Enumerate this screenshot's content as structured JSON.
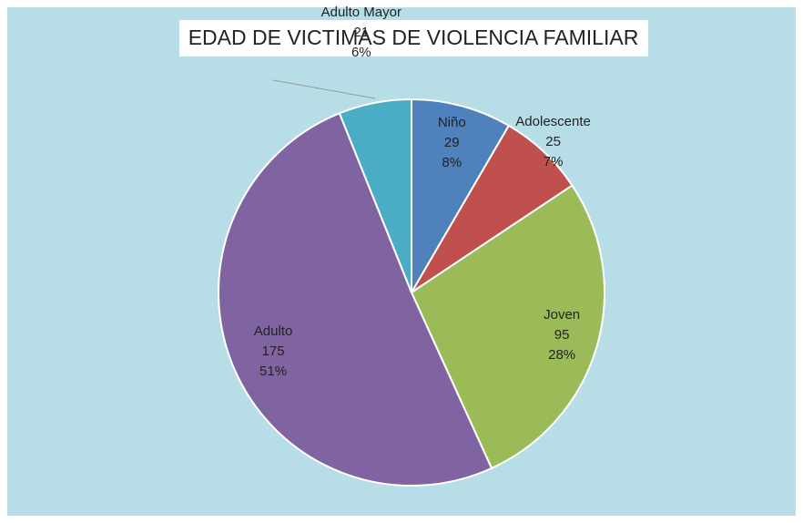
{
  "chart_data": {
    "type": "pie",
    "title": "EDAD DE VICTIMAS DE VIOLENCIA FAMILIAR",
    "categories": [
      "Niño",
      "Adolescente",
      "Joven",
      "Adulto",
      "Adulto Mayor"
    ],
    "values": [
      29,
      25,
      95,
      175,
      21
    ],
    "percent_labels": [
      "8%",
      "7%",
      "28%",
      "51%",
      "6%"
    ],
    "colors": [
      "#4f81bd",
      "#c0504d",
      "#9bbb59",
      "#8064a2",
      "#4bacc6"
    ]
  }
}
